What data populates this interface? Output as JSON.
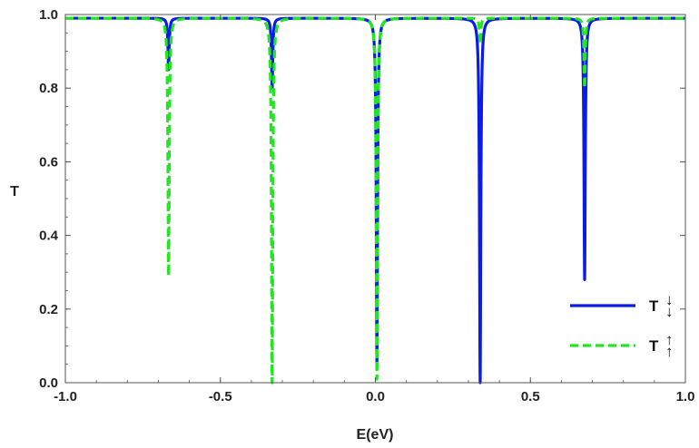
{
  "chart_data": {
    "type": "line",
    "title": "",
    "xlabel": "E(eV)",
    "ylabel": "T",
    "xlim": [
      -1.0,
      1.0
    ],
    "ylim": [
      0.0,
      1.0
    ],
    "x_ticks": [
      -1.0,
      -0.5,
      0.0,
      0.5,
      1.0
    ],
    "x_tick_labels": [
      "-1.0",
      "-0.5",
      "0.0",
      "0.5",
      "1.0"
    ],
    "y_ticks": [
      0.0,
      0.2,
      0.4,
      0.6,
      0.8,
      1.0
    ],
    "y_tick_labels": [
      "0.0",
      "0.2",
      "0.4",
      "0.6",
      "0.8",
      "1.0"
    ],
    "legend_placement": "bottom-right",
    "baseline": 0.99,
    "series": [
      {
        "name": "T↓",
        "legend_main": "T",
        "legend_arrows": "↓↓",
        "color": "#0a1be6",
        "style": "solid",
        "dips": [
          {
            "x": -0.667,
            "min": 0.85
          },
          {
            "x": -0.333,
            "min": 0.8
          },
          {
            "x": 0.005,
            "min": 0.05
          },
          {
            "x": 0.338,
            "min": 0.0
          },
          {
            "x": 0.675,
            "min": 0.28
          }
        ]
      },
      {
        "name": "T↑",
        "legend_main": "T",
        "legend_arrows": "↑↑",
        "color": "#22e622",
        "style": "dashed",
        "dips": [
          {
            "x": -0.667,
            "min": 0.29
          },
          {
            "x": -0.333,
            "min": 0.0
          },
          {
            "x": 0.005,
            "min": 0.01
          },
          {
            "x": 0.338,
            "min": 0.92
          },
          {
            "x": 0.675,
            "min": 0.8
          }
        ]
      }
    ]
  }
}
